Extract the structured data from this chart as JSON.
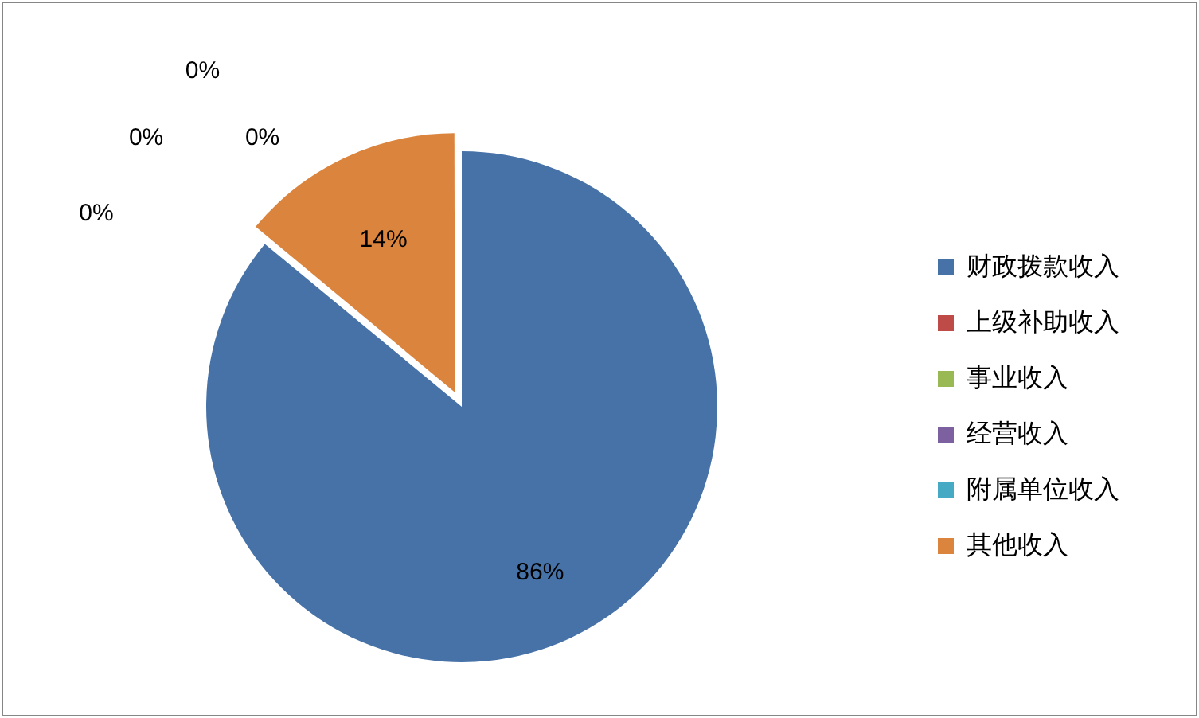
{
  "chart_data": {
    "type": "pie",
    "categories": [
      "财政拨款收入",
      "上级补助收入",
      "事业收入",
      "经营收入",
      "附属单位收入",
      "其他收入"
    ],
    "values": [
      86,
      0,
      0,
      0,
      0,
      14
    ],
    "colors": [
      "#4672a8",
      "#be4b48",
      "#98b954",
      "#7d60a0",
      "#46aac5",
      "#db843d"
    ],
    "value_labels": [
      "86%",
      "0%",
      "0%",
      "0%",
      "0%",
      "14%"
    ],
    "legend": "right"
  }
}
